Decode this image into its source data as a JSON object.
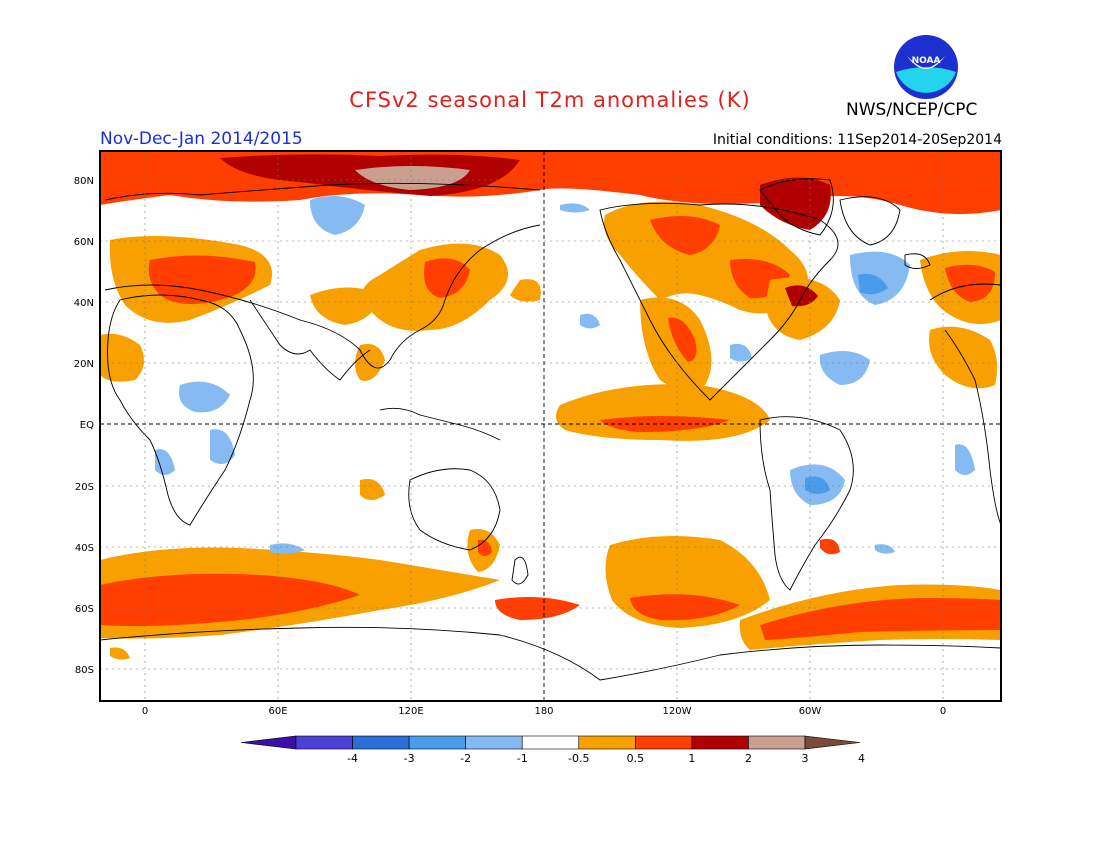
{
  "header": {
    "title": "CFSv2 seasonal T2m anomalies (K)",
    "agency": "NWS/NCEP/CPC",
    "period": "Nov-Dec-Jan 2014/2015",
    "initial_conditions": "Initial conditions: 11Sep2014-20Sep2014",
    "logo_text": "NOAA"
  },
  "axes": {
    "lat_labels": [
      "80N",
      "60N",
      "40N",
      "20N",
      "EQ",
      "20S",
      "40S",
      "60S",
      "80S"
    ],
    "lon_labels": [
      "0",
      "60E",
      "120E",
      "180",
      "120W",
      "60W",
      "0"
    ]
  },
  "colorbar": {
    "labels": [
      "-4",
      "-3",
      "-2",
      "-1",
      "-0.5",
      "0.5",
      "1",
      "2",
      "3",
      "4"
    ],
    "colors": [
      "#3a10a8",
      "#4c3fd6",
      "#2a6fd8",
      "#4a9bea",
      "#85baf2",
      "#ffffff",
      "#f7a000",
      "#ff3e00",
      "#b00000",
      "#c9a090",
      "#7a4a3a"
    ]
  }
}
